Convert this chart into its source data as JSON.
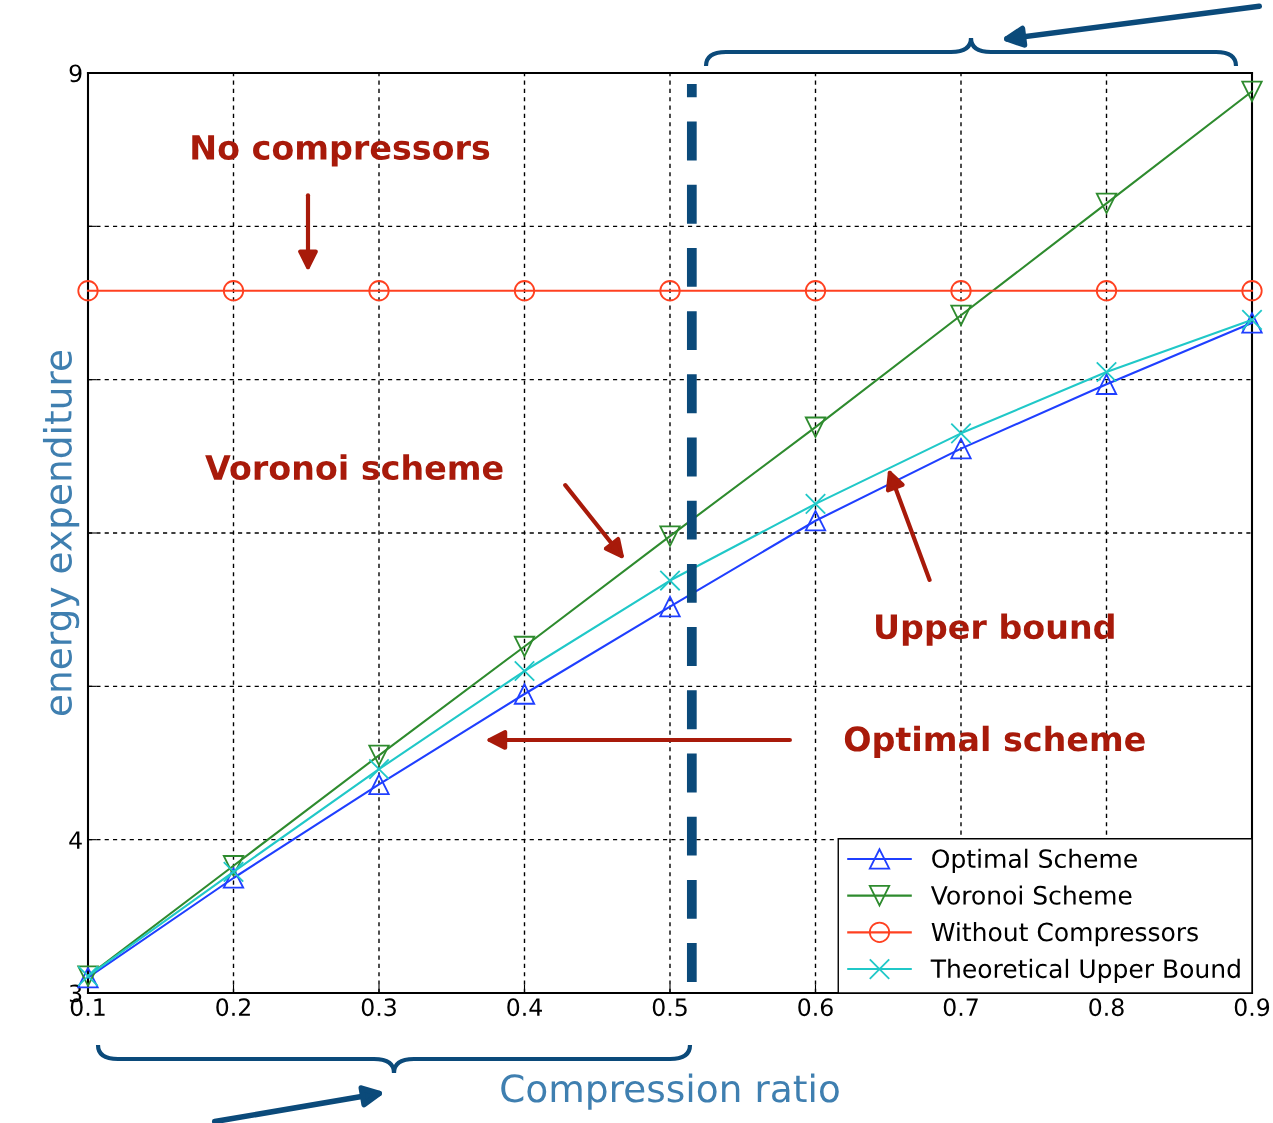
{
  "chart_data": {
    "type": "line",
    "xlabel": "Compression ratio",
    "ylabel": "energy expenditure",
    "x": [
      0.1,
      0.2,
      0.3,
      0.4,
      0.5,
      0.6,
      0.7,
      0.8,
      0.9
    ],
    "xlim": [
      0.1,
      0.9
    ],
    "xticks": [
      0.1,
      0.2,
      0.3,
      0.4,
      0.5,
      0.6,
      0.7,
      0.8,
      0.9
    ],
    "ylim": [
      3,
      9
    ],
    "yticks": [
      3,
      4,
      {
        "value": 5,
        "label": null
      },
      {
        "value": 6,
        "label": null
      },
      {
        "value": 7,
        "label": null
      },
      {
        "value": 8,
        "label": null
      },
      9
    ],
    "grid": true,
    "legend": "bottom right",
    "series": [
      {
        "name": "Optimal Scheme",
        "color": "#1f3fff",
        "marker": "triangle",
        "values": [
          3.1,
          3.75,
          4.36,
          4.95,
          5.52,
          6.08,
          6.55,
          6.97,
          7.37
        ]
      },
      {
        "name": "Voronoi Scheme",
        "color": "#2e8b2e",
        "marker": "triangle_down",
        "values": [
          3.11,
          3.83,
          4.55,
          5.26,
          5.98,
          6.69,
          7.42,
          8.15,
          8.88
        ]
      },
      {
        "name": "Without Compressors",
        "color": "#ff4020",
        "marker": "circle",
        "values": [
          7.58,
          7.58,
          7.58,
          7.58,
          7.58,
          7.58,
          7.58,
          7.58,
          7.58
        ]
      },
      {
        "name": "Theoretical Upper Bound",
        "color": "#20c8c8",
        "marker": "cross",
        "values": [
          3.11,
          3.79,
          4.46,
          5.1,
          5.69,
          6.19,
          6.65,
          7.05,
          7.39
        ]
      }
    ],
    "ref_lines": [
      {
        "axis": "x",
        "value": 0.515,
        "color": "#0b4a7a",
        "line_style": "dashed"
      }
    ],
    "annotations": [
      "No compressors",
      "Voronoi scheme",
      {
        "text": "Upper bound",
        "x": 0.65,
        "y": 6.42
      },
      "Optimal scheme"
    ]
  }
}
